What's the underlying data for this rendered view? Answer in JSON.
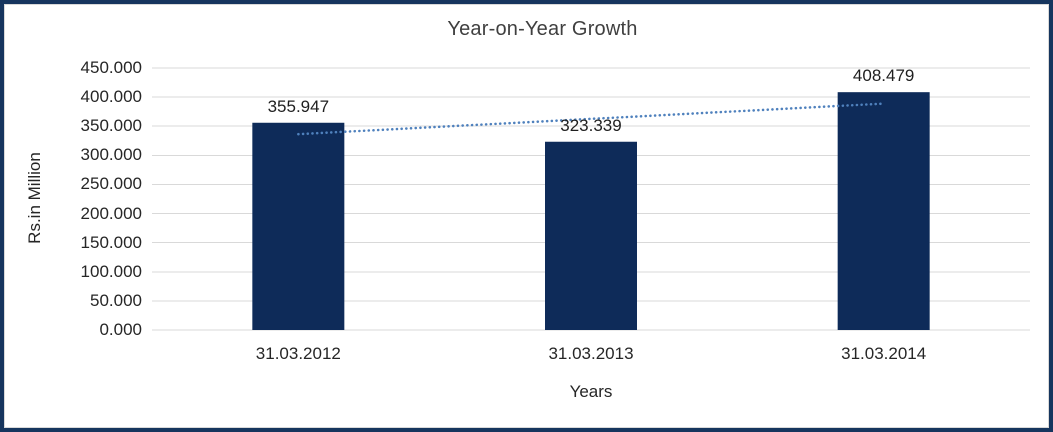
{
  "chart_data": {
    "type": "bar",
    "title": "Year-on-Year Growth",
    "xlabel": "Years",
    "ylabel": "Rs.in Million",
    "categories": [
      "31.03.2012",
      "31.03.2013",
      "31.03.2014"
    ],
    "values": [
      355.947,
      323.339,
      408.479
    ],
    "data_labels": [
      "355.947",
      "323.339",
      "408.479"
    ],
    "ylim": [
      0,
      450
    ],
    "ytick_step": 50,
    "ytick_labels": [
      "0.000",
      "50.000",
      "100.000",
      "150.000",
      "200.000",
      "250.000",
      "300.000",
      "350.000",
      "400.000",
      "450.000"
    ],
    "grid": true,
    "legend_position": "none",
    "trendline": {
      "type": "linear",
      "style": "dotted"
    },
    "colors": {
      "bar": "#0e2b59",
      "trendline": "#4f81bd",
      "gridline": "#d9d9d9",
      "frame_border": "#16355e",
      "chart_area_border": "#d9d9d9",
      "title_text": "#3f3f3f",
      "axis_text": "#262626"
    }
  }
}
